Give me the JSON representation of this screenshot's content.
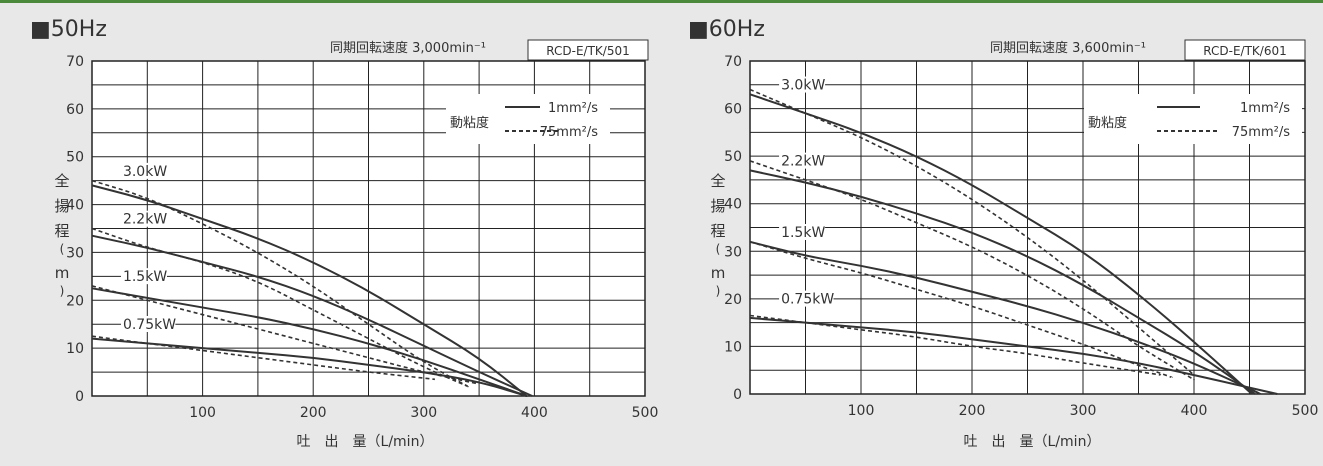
{
  "colors": {
    "background": "#e8e8e8",
    "plot_bg": "#ffffff",
    "curve": "#333333",
    "grid": "#222222",
    "accent_bar": "#4a8a3a"
  },
  "charts": [
    {
      "heading": "■50Hz",
      "speed": "同期回転速度 3,000min⁻¹",
      "model": "RCD-E/TK/501",
      "legend_title": "動粘度",
      "legend_solid": "1mm²/s",
      "legend_dashed": "75mm²/s",
      "ylabel": "全\n揚\n程\n(\nm\n)",
      "xlabel": "吐　出　量（L/min）"
    },
    {
      "heading": "■60Hz",
      "speed": "同期回転速度 3,600min⁻¹",
      "model": "RCD-E/TK/601",
      "legend_title": "動粘度",
      "legend_solid": "1mm²/s",
      "legend_dashed": "75mm²/s",
      "ylabel": "全\n揚\n程\n(\nm\n)",
      "xlabel": "吐　出　量（L/min）"
    }
  ],
  "chart_data": [
    {
      "type": "line",
      "title": "50Hz",
      "xlabel": "吐出量（L/min）",
      "ylabel": "全揚程（m）",
      "xlim": [
        0,
        500
      ],
      "ylim": [
        0,
        70
      ],
      "xticks": [
        100,
        200,
        300,
        400,
        500
      ],
      "yticks": [
        0,
        10,
        20,
        30,
        40,
        50,
        60,
        70
      ],
      "grid": true,
      "legend_position": "top-right",
      "series": [
        {
          "name": "3.0kW 1mm²/s",
          "style": "solid",
          "x": [
            0,
            50,
            100,
            150,
            200,
            250,
            300,
            350,
            393
          ],
          "y": [
            44,
            41,
            37,
            33,
            28,
            22,
            15,
            8,
            0
          ]
        },
        {
          "name": "3.0kW 75mm²/s",
          "style": "dashed",
          "x": [
            0,
            50,
            100,
            150,
            200,
            250,
            300,
            340
          ],
          "y": [
            45,
            41.5,
            36,
            30,
            23,
            15,
            7,
            2
          ]
        },
        {
          "name": "2.2kW 1mm²/s",
          "style": "solid",
          "x": [
            0,
            50,
            100,
            150,
            200,
            250,
            300,
            350,
            398
          ],
          "y": [
            33.5,
            31,
            28,
            25,
            21,
            16,
            10.5,
            5,
            0
          ]
        },
        {
          "name": "2.2kW 75mm²/s",
          "style": "dashed",
          "x": [
            0,
            50,
            100,
            150,
            200,
            250,
            300,
            340
          ],
          "y": [
            35,
            31,
            28,
            24,
            18,
            12,
            6,
            2
          ]
        },
        {
          "name": "1.5kW 1mm²/s",
          "style": "solid",
          "x": [
            0,
            50,
            100,
            150,
            200,
            250,
            300,
            350,
            393
          ],
          "y": [
            22.5,
            20.5,
            18.5,
            16.5,
            14,
            11,
            7.5,
            3.5,
            0
          ]
        },
        {
          "name": "1.5kW 75mm²/s",
          "style": "dashed",
          "x": [
            0,
            50,
            100,
            150,
            200,
            250,
            300,
            350
          ],
          "y": [
            23,
            20,
            17,
            14,
            11,
            8,
            5,
            2.5
          ]
        },
        {
          "name": "0.75kW 1mm²/s",
          "style": "solid",
          "x": [
            0,
            50,
            100,
            150,
            200,
            250,
            300,
            350,
            393
          ],
          "y": [
            12,
            11,
            10,
            9,
            8,
            6.5,
            5,
            3,
            0
          ]
        },
        {
          "name": "0.75kW 75mm²/s",
          "style": "dashed",
          "x": [
            0,
            50,
            100,
            150,
            200,
            250,
            310
          ],
          "y": [
            12.5,
            11,
            9.5,
            8,
            6.5,
            5,
            3.5
          ]
        }
      ],
      "annotations": [
        {
          "text": "3.0kW",
          "x": 28,
          "y": 46
        },
        {
          "text": "2.2kW",
          "x": 28,
          "y": 36
        },
        {
          "text": "1.5kW",
          "x": 28,
          "y": 24
        },
        {
          "text": "0.75kW",
          "x": 28,
          "y": 14
        }
      ]
    },
    {
      "type": "line",
      "title": "60Hz",
      "xlabel": "吐出量（L/min）",
      "ylabel": "全揚程（m）",
      "xlim": [
        0,
        500
      ],
      "ylim": [
        0,
        70
      ],
      "xticks": [
        100,
        200,
        300,
        400,
        500
      ],
      "yticks": [
        0,
        10,
        20,
        30,
        40,
        50,
        60,
        70
      ],
      "grid": true,
      "legend_position": "top-right",
      "series": [
        {
          "name": "3.0kW 1mm²/s",
          "style": "solid",
          "x": [
            0,
            50,
            100,
            150,
            200,
            250,
            300,
            350,
            400,
            452
          ],
          "y": [
            63,
            59,
            55,
            50,
            44,
            37,
            30,
            21,
            11,
            0
          ]
        },
        {
          "name": "3.0kW 75mm²/s",
          "style": "dashed",
          "x": [
            0,
            50,
            100,
            150,
            200,
            250,
            300,
            350,
            400
          ],
          "y": [
            64,
            59,
            54,
            48,
            41,
            33,
            24,
            14,
            4
          ]
        },
        {
          "name": "2.2kW 1mm²/s",
          "style": "solid",
          "x": [
            0,
            50,
            100,
            150,
            200,
            250,
            300,
            350,
            400,
            455
          ],
          "y": [
            47,
            44.5,
            41.5,
            38,
            34,
            29,
            23,
            16,
            9,
            0
          ]
        },
        {
          "name": "2.2kW 75mm²/s",
          "style": "dashed",
          "x": [
            0,
            50,
            100,
            150,
            200,
            250,
            300,
            350,
            400
          ],
          "y": [
            49,
            45,
            41,
            36,
            31,
            25,
            18,
            10,
            3
          ]
        },
        {
          "name": "1.5kW 1mm²/s",
          "style": "solid",
          "x": [
            0,
            50,
            100,
            150,
            200,
            250,
            300,
            350,
            400,
            460
          ],
          "y": [
            32,
            29,
            27,
            24.5,
            21.5,
            18.5,
            15,
            11,
            6.5,
            0
          ]
        },
        {
          "name": "1.5kW 75mm²/s",
          "style": "dashed",
          "x": [
            0,
            50,
            100,
            150,
            200,
            250,
            300,
            350,
            380
          ],
          "y": [
            32,
            28.5,
            25.5,
            22,
            18.5,
            14.5,
            10.5,
            6,
            3.5
          ]
        },
        {
          "name": "0.75kW 1mm²/s",
          "style": "solid",
          "x": [
            0,
            50,
            100,
            150,
            200,
            250,
            300,
            350,
            400,
            475
          ],
          "y": [
            16,
            15,
            14,
            13,
            11.5,
            10,
            8.5,
            6.5,
            4,
            0
          ]
        },
        {
          "name": "0.75kW 75mm²/s",
          "style": "dashed",
          "x": [
            0,
            50,
            100,
            150,
            200,
            250,
            300,
            370
          ],
          "y": [
            16.5,
            15,
            13.5,
            12,
            10,
            8.5,
            6.5,
            4
          ]
        }
      ],
      "annotations": [
        {
          "text": "3.0kW",
          "x": 28,
          "y": 64
        },
        {
          "text": "2.2kW",
          "x": 28,
          "y": 48
        },
        {
          "text": "1.5kW",
          "x": 28,
          "y": 33
        },
        {
          "text": "0.75kW",
          "x": 28,
          "y": 19
        }
      ]
    }
  ]
}
